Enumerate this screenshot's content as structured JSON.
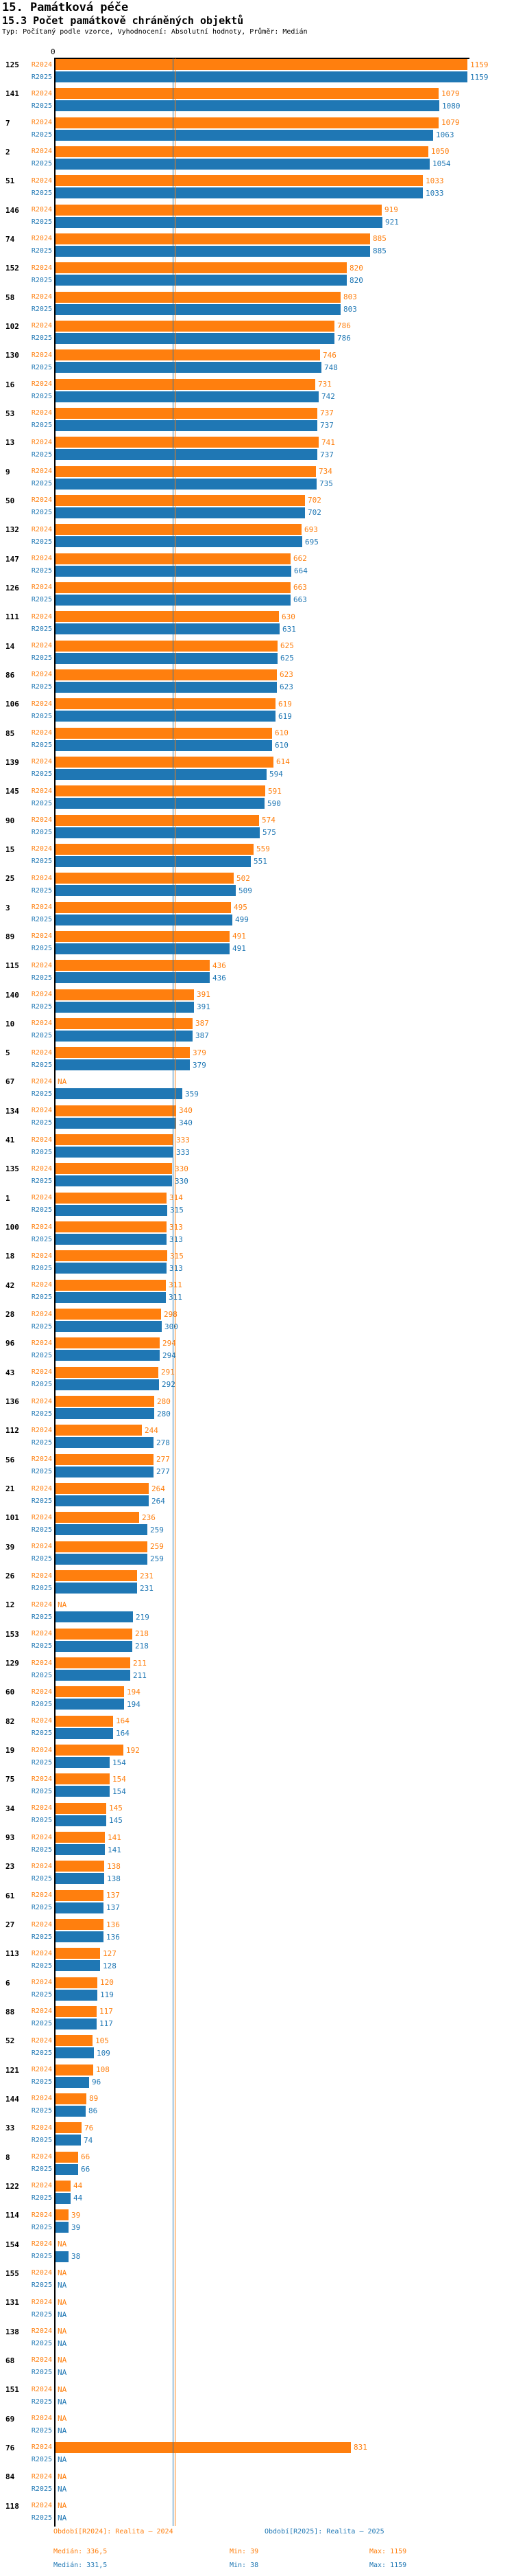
{
  "title": "15. Památková péče",
  "subtitle": "15.3 Počet památkově chráněných objektů",
  "meta_line": "Typ: Počítaný podle vzorce, Vyhodnocení: Absolutní hodnoty, Průměr: Medián",
  "axis": {
    "zero_label": "0"
  },
  "na_label": "NA",
  "colors": {
    "r2024": "#ff7f0e",
    "r2025": "#1f77b4",
    "axis": "#000000"
  },
  "legend": {
    "r2024": "Období[R2024]: Realita – 2024",
    "r2025": "Období[R2025]: Realita – 2025"
  },
  "stats": {
    "r2024": {
      "median": "Medián: 336,5",
      "min": "Min: 39",
      "max": "Max: 1159"
    },
    "r2025": {
      "median": "Medián: 331,5",
      "min": "Min: 38",
      "max": "Max: 1159"
    }
  },
  "chart_data": {
    "type": "bar",
    "orientation": "horizontal",
    "series": [
      "R2024",
      "R2025"
    ],
    "value_axis_min": 0,
    "value_axis_max": 1159,
    "medians": {
      "R2024": 336.5,
      "R2025": 331.5
    },
    "mins": {
      "R2024": 39,
      "R2025": 38
    },
    "maxs": {
      "R2024": 1159,
      "R2025": 1159
    },
    "rows": [
      {
        "label": "125",
        "R2024": 1159,
        "R2025": 1159
      },
      {
        "label": "141",
        "R2024": 1079,
        "R2025": 1080
      },
      {
        "label": "7",
        "R2024": 1079,
        "R2025": 1063
      },
      {
        "label": "2",
        "R2024": 1050,
        "R2025": 1054
      },
      {
        "label": "51",
        "R2024": 1033,
        "R2025": 1033
      },
      {
        "label": "146",
        "R2024": 919,
        "R2025": 921
      },
      {
        "label": "74",
        "R2024": 885,
        "R2025": 885
      },
      {
        "label": "152",
        "R2024": 820,
        "R2025": 820
      },
      {
        "label": "58",
        "R2024": 803,
        "R2025": 803
      },
      {
        "label": "102",
        "R2024": 786,
        "R2025": 786
      },
      {
        "label": "130",
        "R2024": 746,
        "R2025": 748
      },
      {
        "label": "16",
        "R2024": 731,
        "R2025": 742
      },
      {
        "label": "53",
        "R2024": 737,
        "R2025": 737
      },
      {
        "label": "13",
        "R2024": 741,
        "R2025": 737
      },
      {
        "label": "9",
        "R2024": 734,
        "R2025": 735
      },
      {
        "label": "50",
        "R2024": 702,
        "R2025": 702
      },
      {
        "label": "132",
        "R2024": 693,
        "R2025": 695
      },
      {
        "label": "147",
        "R2024": 662,
        "R2025": 664
      },
      {
        "label": "126",
        "R2024": 663,
        "R2025": 663
      },
      {
        "label": "111",
        "R2024": 630,
        "R2025": 631
      },
      {
        "label": "14",
        "R2024": 625,
        "R2025": 625
      },
      {
        "label": "86",
        "R2024": 623,
        "R2025": 623
      },
      {
        "label": "106",
        "R2024": 619,
        "R2025": 619
      },
      {
        "label": "85",
        "R2024": 610,
        "R2025": 610
      },
      {
        "label": "139",
        "R2024": 614,
        "R2025": 594
      },
      {
        "label": "145",
        "R2024": 591,
        "R2025": 590
      },
      {
        "label": "90",
        "R2024": 574,
        "R2025": 575
      },
      {
        "label": "15",
        "R2024": 559,
        "R2025": 551
      },
      {
        "label": "25",
        "R2024": 502,
        "R2025": 509
      },
      {
        "label": "3",
        "R2024": 495,
        "R2025": 499
      },
      {
        "label": "89",
        "R2024": 491,
        "R2025": 491
      },
      {
        "label": "115",
        "R2024": 436,
        "R2025": 436
      },
      {
        "label": "140",
        "R2024": 391,
        "R2025": 391
      },
      {
        "label": "10",
        "R2024": 387,
        "R2025": 387
      },
      {
        "label": "5",
        "R2024": 379,
        "R2025": 379
      },
      {
        "label": "67",
        "R2024": null,
        "R2025": 359
      },
      {
        "label": "134",
        "R2024": 340,
        "R2025": 340
      },
      {
        "label": "41",
        "R2024": 333,
        "R2025": 333
      },
      {
        "label": "135",
        "R2024": 330,
        "R2025": 330
      },
      {
        "label": "1",
        "R2024": 314,
        "R2025": 315
      },
      {
        "label": "100",
        "R2024": 313,
        "R2025": 313
      },
      {
        "label": "18",
        "R2024": 315,
        "R2025": 313
      },
      {
        "label": "42",
        "R2024": 311,
        "R2025": 311
      },
      {
        "label": "28",
        "R2024": 298,
        "R2025": 300
      },
      {
        "label": "96",
        "R2024": 294,
        "R2025": 294
      },
      {
        "label": "43",
        "R2024": 291,
        "R2025": 292
      },
      {
        "label": "136",
        "R2024": 280,
        "R2025": 280
      },
      {
        "label": "112",
        "R2024": 244,
        "R2025": 278
      },
      {
        "label": "56",
        "R2024": 277,
        "R2025": 277
      },
      {
        "label": "21",
        "R2024": 264,
        "R2025": 264
      },
      {
        "label": "101",
        "R2024": 236,
        "R2025": 259
      },
      {
        "label": "39",
        "R2024": 259,
        "R2025": 259
      },
      {
        "label": "26",
        "R2024": 231,
        "R2025": 231
      },
      {
        "label": "12",
        "R2024": null,
        "R2025": 219
      },
      {
        "label": "153",
        "R2024": 218,
        "R2025": 218
      },
      {
        "label": "129",
        "R2024": 211,
        "R2025": 211
      },
      {
        "label": "60",
        "R2024": 194,
        "R2025": 194
      },
      {
        "label": "82",
        "R2024": 164,
        "R2025": 164
      },
      {
        "label": "19",
        "R2024": 192,
        "R2025": 154
      },
      {
        "label": "75",
        "R2024": 154,
        "R2025": 154
      },
      {
        "label": "34",
        "R2024": 145,
        "R2025": 145
      },
      {
        "label": "93",
        "R2024": 141,
        "R2025": 141
      },
      {
        "label": "23",
        "R2024": 138,
        "R2025": 138
      },
      {
        "label": "61",
        "R2024": 137,
        "R2025": 137
      },
      {
        "label": "27",
        "R2024": 136,
        "R2025": 136
      },
      {
        "label": "113",
        "R2024": 127,
        "R2025": 128
      },
      {
        "label": "6",
        "R2024": 120,
        "R2025": 119
      },
      {
        "label": "88",
        "R2024": 117,
        "R2025": 117
      },
      {
        "label": "52",
        "R2024": 105,
        "R2025": 109
      },
      {
        "label": "121",
        "R2024": 108,
        "R2025": 96
      },
      {
        "label": "144",
        "R2024": 89,
        "R2025": 86
      },
      {
        "label": "33",
        "R2024": 76,
        "R2025": 74
      },
      {
        "label": "8",
        "R2024": 66,
        "R2025": 66
      },
      {
        "label": "122",
        "R2024": 44,
        "R2025": 44
      },
      {
        "label": "114",
        "R2024": 39,
        "R2025": 39
      },
      {
        "label": "154",
        "R2024": null,
        "R2025": 38
      },
      {
        "label": "155",
        "R2024": null,
        "R2025": null
      },
      {
        "label": "131",
        "R2024": null,
        "R2025": null
      },
      {
        "label": "138",
        "R2024": null,
        "R2025": null
      },
      {
        "label": "68",
        "R2024": null,
        "R2025": null
      },
      {
        "label": "151",
        "R2024": null,
        "R2025": null
      },
      {
        "label": "69",
        "R2024": null,
        "R2025": null
      },
      {
        "label": "76",
        "R2024": 831,
        "R2025": null
      },
      {
        "label": "84",
        "R2024": null,
        "R2025": null
      },
      {
        "label": "118",
        "R2024": null,
        "R2025": null
      }
    ]
  }
}
